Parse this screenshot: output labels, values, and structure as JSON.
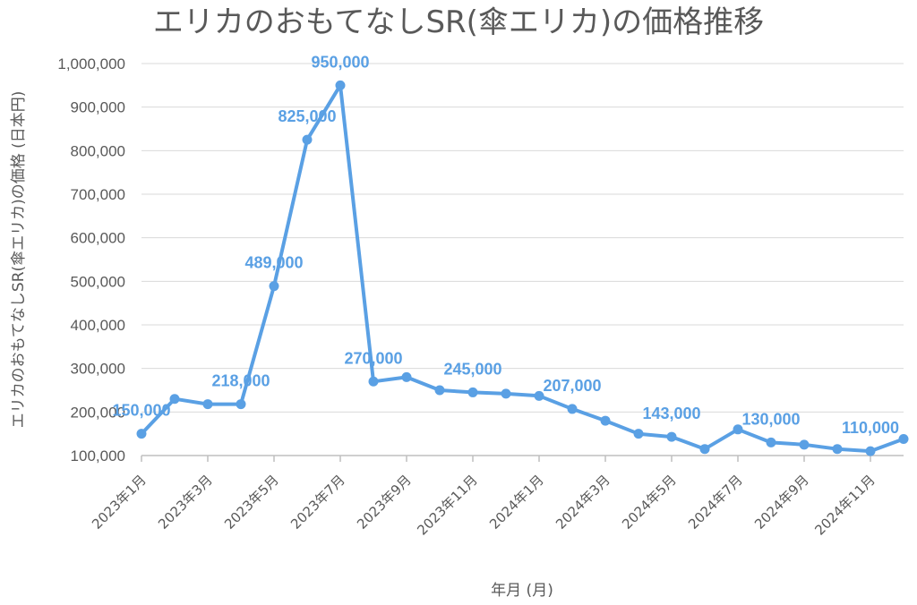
{
  "chart_data": {
    "type": "line",
    "title": "エリカのおもてなしSR(傘エリカ)の価格推移",
    "xlabel": "年月 (月)",
    "ylabel": "エリカのおもてなしSR(傘エリカ)の価格 (日本円)",
    "ylim": [
      100000,
      1000000
    ],
    "yticks": [
      "100,000",
      "200,000",
      "300,000",
      "400,000",
      "500,000",
      "600,000",
      "700,000",
      "800,000",
      "900,000",
      "1,000,000"
    ],
    "grid": true,
    "color": "#5aa0e4",
    "x": [
      "2023年1月",
      "2023年2月",
      "2023年3月",
      "2023年4月",
      "2023年5月",
      "2023年6月",
      "2023年7月",
      "2023年8月",
      "2023年9月",
      "2023年10月",
      "2023年11月",
      "2023年12月",
      "2024年1月",
      "2024年2月",
      "2024年3月",
      "2024年4月",
      "2024年5月",
      "2024年6月",
      "2024年7月",
      "2024年8月",
      "2024年9月",
      "2024年10月",
      "2024年11月",
      "2024年12月"
    ],
    "x_tick_labels": [
      "2023年1月",
      "2023年3月",
      "2023年5月",
      "2023年7月",
      "2023年9月",
      "2023年11月",
      "2024年1月",
      "2024年3月",
      "2024年5月",
      "2024年7月",
      "2024年9月",
      "2024年11月"
    ],
    "values": [
      150000,
      230000,
      218000,
      218000,
      489000,
      825000,
      950000,
      270000,
      280000,
      250000,
      245000,
      242000,
      237000,
      207000,
      180000,
      150000,
      143000,
      115000,
      160000,
      130000,
      125000,
      115000,
      110000,
      138000
    ],
    "data_labels": [
      {
        "index": 0,
        "text": "150,000"
      },
      {
        "index": 3,
        "text": "218,000"
      },
      {
        "index": 4,
        "text": "489,000"
      },
      {
        "index": 5,
        "text": "825,000"
      },
      {
        "index": 6,
        "text": "950,000"
      },
      {
        "index": 7,
        "text": "270,000"
      },
      {
        "index": 10,
        "text": "245,000"
      },
      {
        "index": 13,
        "text": "207,000"
      },
      {
        "index": 16,
        "text": "143,000"
      },
      {
        "index": 19,
        "text": "130,000"
      },
      {
        "index": 22,
        "text": "110,000"
      }
    ]
  }
}
